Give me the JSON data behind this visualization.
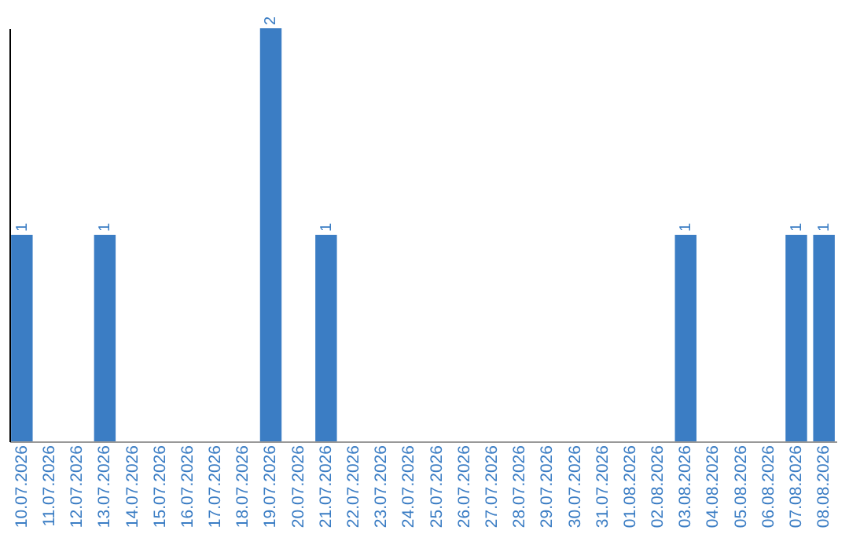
{
  "chart_data": {
    "type": "bar",
    "categories": [
      "10.07.2026",
      "11.07.2026",
      "12.07.2026",
      "13.07.2026",
      "14.07.2026",
      "15.07.2026",
      "16.07.2026",
      "17.07.2026",
      "18.07.2026",
      "19.07.2026",
      "20.07.2026",
      "21.07.2026",
      "22.07.2026",
      "23.07.2026",
      "24.07.2026",
      "25.07.2026",
      "26.07.2026",
      "27.07.2026",
      "28.07.2026",
      "29.07.2026",
      "30.07.2026",
      "31.07.2026",
      "01.08.2026",
      "02.08.2026",
      "03.08.2026",
      "04.08.2026",
      "05.08.2026",
      "06.08.2026",
      "07.08.2026",
      "08.08.2026"
    ],
    "values": [
      1,
      0,
      0,
      1,
      0,
      0,
      0,
      0,
      0,
      2,
      0,
      1,
      0,
      0,
      0,
      0,
      0,
      0,
      0,
      0,
      0,
      0,
      0,
      0,
      1,
      0,
      0,
      0,
      1,
      1
    ],
    "value_labels": [
      "1",
      null,
      null,
      "1",
      null,
      null,
      null,
      null,
      null,
      "2",
      null,
      "1",
      null,
      null,
      null,
      null,
      null,
      null,
      null,
      null,
      null,
      null,
      null,
      null,
      "1",
      null,
      null,
      null,
      "1",
      "1"
    ],
    "color": "#3b7dc4",
    "tick_labels": "x"
  }
}
